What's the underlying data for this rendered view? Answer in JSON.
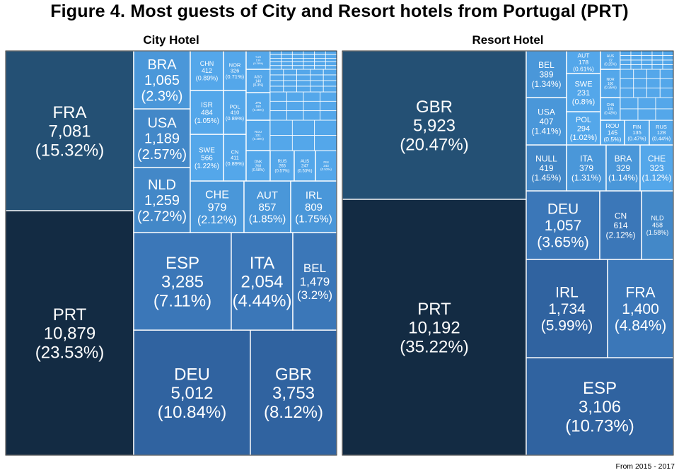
{
  "title": "Figure 4. Most guests of City and Resort hotels from Portugal (PRT)",
  "caption": "From 2015 - 2017",
  "colors": {
    "c0": "#132b43",
    "c1": "#245074",
    "c2": "#3063a0",
    "c3": "#3b77b8",
    "c4": "#4388c8",
    "c5": "#4a97d9",
    "c6": "#54a7ea",
    "border": "#ffffff",
    "panel_border": "#333333"
  },
  "chart_data": [
    {
      "type": "treemap",
      "title": "City Hotel",
      "items": [
        {
          "label": "PRT",
          "value": 10879,
          "value_text": "10,879",
          "pct": "23.53%"
        },
        {
          "label": "FRA",
          "value": 7081,
          "value_text": "7,081",
          "pct": "15.32%"
        },
        {
          "label": "DEU",
          "value": 5012,
          "value_text": "5,012",
          "pct": "10.84%"
        },
        {
          "label": "GBR",
          "value": 3753,
          "value_text": "3,753",
          "pct": "8.12%"
        },
        {
          "label": "ESP",
          "value": 3285,
          "value_text": "3,285",
          "pct": "7.11%"
        },
        {
          "label": "ITA",
          "value": 2054,
          "value_text": "2,054",
          "pct": "4.44%"
        },
        {
          "label": "BEL",
          "value": 1479,
          "value_text": "1,479",
          "pct": "3.2%"
        },
        {
          "label": "NLD",
          "value": 1259,
          "value_text": "1,259",
          "pct": "2.72%"
        },
        {
          "label": "USA",
          "value": 1189,
          "value_text": "1,189",
          "pct": "2.57%"
        },
        {
          "label": "BRA",
          "value": 1065,
          "value_text": "1,065",
          "pct": "2.3%"
        },
        {
          "label": "CHE",
          "value": 979,
          "value_text": "979",
          "pct": "2.12%"
        },
        {
          "label": "AUT",
          "value": 857,
          "value_text": "857",
          "pct": "1.85%"
        },
        {
          "label": "IRL",
          "value": 809,
          "value_text": "809",
          "pct": "1.75%"
        },
        {
          "label": "SWE",
          "value": 566,
          "value_text": "566",
          "pct": "1.22%"
        },
        {
          "label": "ISR",
          "value": 484,
          "value_text": "484",
          "pct": "1.05%"
        },
        {
          "label": "CHN",
          "value": 412,
          "value_text": "412",
          "pct": "0.89%"
        },
        {
          "label": "CN",
          "value": 411,
          "value_text": "411",
          "pct": "0.89%"
        },
        {
          "label": "POL",
          "value": 410,
          "value_text": "410",
          "pct": "0.89%"
        },
        {
          "label": "NOR",
          "value": 326,
          "value_text": "326",
          "pct": "0.71%"
        },
        {
          "label": "DNK",
          "value": 268,
          "value_text": "268",
          "pct": "0.58%"
        },
        {
          "label": "RUS",
          "value": 265,
          "value_text": "265",
          "pct": "0.57%"
        },
        {
          "label": "AUS",
          "value": 247,
          "value_text": "247",
          "pct": "0.53%"
        },
        {
          "label": "FIN",
          "value": 243,
          "value_text": "243",
          "pct": "0.53%"
        },
        {
          "label": "ROU",
          "value": 221,
          "value_text": "221",
          "pct": "0.48%"
        },
        {
          "label": "JPN",
          "value": 160,
          "value_text": "160",
          "pct": "0.35%"
        },
        {
          "label": "AGO",
          "value": 140,
          "value_text": "140",
          "pct": "0.3%"
        },
        {
          "label": "TUR",
          "value": 130,
          "value_text": "130",
          "pct": "0.28%"
        }
      ]
    },
    {
      "type": "treemap",
      "title": "Resort Hotel",
      "items": [
        {
          "label": "PRT",
          "value": 10192,
          "value_text": "10,192",
          "pct": "35.22%"
        },
        {
          "label": "GBR",
          "value": 5923,
          "value_text": "5,923",
          "pct": "20.47%"
        },
        {
          "label": "ESP",
          "value": 3106,
          "value_text": "3,106",
          "pct": "10.73%"
        },
        {
          "label": "IRL",
          "value": 1734,
          "value_text": "1,734",
          "pct": "5.99%"
        },
        {
          "label": "FRA",
          "value": 1400,
          "value_text": "1,400",
          "pct": "4.84%"
        },
        {
          "label": "DEU",
          "value": 1057,
          "value_text": "1,057",
          "pct": "3.65%"
        },
        {
          "label": "CN",
          "value": 614,
          "value_text": "614",
          "pct": "2.12%"
        },
        {
          "label": "NLD",
          "value": 458,
          "value_text": "458",
          "pct": "1.58%"
        },
        {
          "label": "NULL",
          "value": 419,
          "value_text": "419",
          "pct": "1.45%"
        },
        {
          "label": "USA",
          "value": 407,
          "value_text": "407",
          "pct": "1.41%"
        },
        {
          "label": "BEL",
          "value": 389,
          "value_text": "389",
          "pct": "1.34%"
        },
        {
          "label": "ITA",
          "value": 379,
          "value_text": "379",
          "pct": "1.31%"
        },
        {
          "label": "BRA",
          "value": 329,
          "value_text": "329",
          "pct": "1.14%"
        },
        {
          "label": "CHE",
          "value": 323,
          "value_text": "323",
          "pct": "1.12%"
        },
        {
          "label": "POL",
          "value": 294,
          "value_text": "294",
          "pct": "1.02%"
        },
        {
          "label": "SWE",
          "value": 231,
          "value_text": "231",
          "pct": "0.8%"
        },
        {
          "label": "AUT",
          "value": 178,
          "value_text": "178",
          "pct": "0.61%"
        },
        {
          "label": "ROU",
          "value": 145,
          "value_text": "145",
          "pct": "0.5%"
        },
        {
          "label": "FIN",
          "value": 135,
          "value_text": "135",
          "pct": "0.47%"
        },
        {
          "label": "RUS",
          "value": 128,
          "value_text": "128",
          "pct": "0.44%"
        },
        {
          "label": "CHN",
          "value": 125,
          "value_text": "125",
          "pct": "0.43%"
        },
        {
          "label": "NOR",
          "value": 100,
          "value_text": "100",
          "pct": "0.35%"
        },
        {
          "label": "AUS",
          "value": 72,
          "value_text": "72",
          "pct": "0.25%"
        }
      ]
    }
  ]
}
